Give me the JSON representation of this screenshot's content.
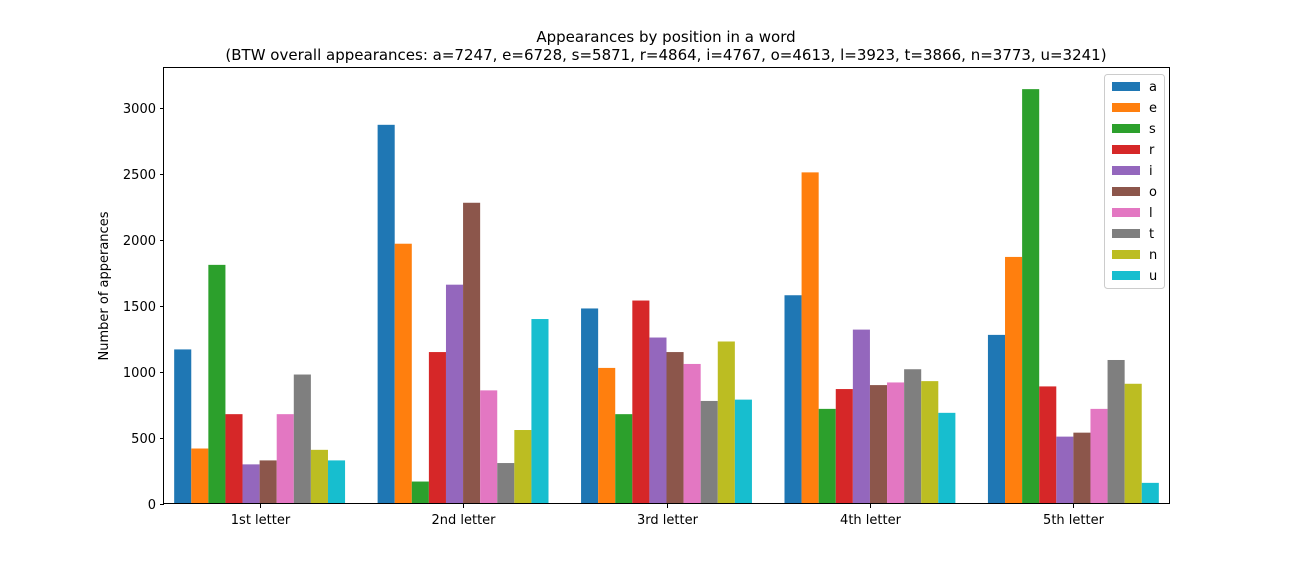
{
  "chart_data": {
    "type": "bar",
    "title": "Appearances by position in a word",
    "subtitle": "(BTW overall appearances: a=7247, e=6728, s=5871, r=4864, i=4767, o=4613, l=3923, t=3866, n=3773, u=3241)",
    "xlabel": "",
    "ylabel": "Number of apperances",
    "ylim": [
      0,
      3300
    ],
    "yticks": [
      0,
      500,
      1000,
      1500,
      2000,
      2500,
      3000
    ],
    "categories": [
      "1st letter",
      "2nd letter",
      "3rd letter",
      "4th letter",
      "5th letter"
    ],
    "legend_position": "top-right",
    "grid": false,
    "series": [
      {
        "name": "a",
        "color": "#1f77b4",
        "values": [
          1170,
          2870,
          1480,
          1580,
          1280
        ]
      },
      {
        "name": "e",
        "color": "#ff7f0e",
        "values": [
          420,
          1970,
          1030,
          2510,
          1870
        ]
      },
      {
        "name": "s",
        "color": "#2ca02c",
        "values": [
          1810,
          170,
          680,
          720,
          3140
        ]
      },
      {
        "name": "r",
        "color": "#d62728",
        "values": [
          680,
          1150,
          1540,
          870,
          890
        ]
      },
      {
        "name": "i",
        "color": "#9467bd",
        "values": [
          300,
          1660,
          1260,
          1320,
          510
        ]
      },
      {
        "name": "o",
        "color": "#8c564b",
        "values": [
          330,
          2280,
          1150,
          900,
          540
        ]
      },
      {
        "name": "l",
        "color": "#e377c2",
        "values": [
          680,
          860,
          1060,
          920,
          720
        ]
      },
      {
        "name": "t",
        "color": "#7f7f7f",
        "values": [
          980,
          310,
          780,
          1020,
          1090
        ]
      },
      {
        "name": "n",
        "color": "#bcbd22",
        "values": [
          410,
          560,
          1230,
          930,
          910
        ]
      },
      {
        "name": "u",
        "color": "#17becf",
        "values": [
          330,
          1400,
          790,
          690,
          160
        ]
      }
    ]
  }
}
